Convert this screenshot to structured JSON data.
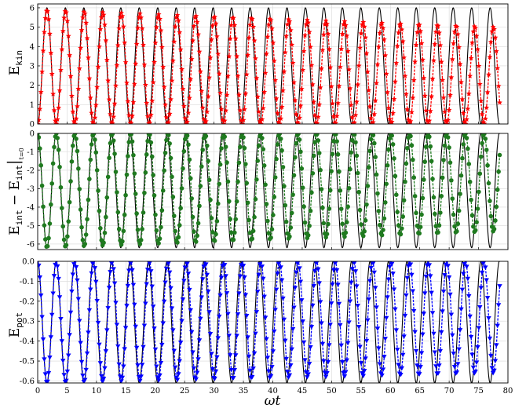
{
  "chart_data": [
    {
      "type": "line",
      "ylabel": "E_kin",
      "xlim": [
        0,
        80
      ],
      "ylim": [
        0,
        6.2
      ],
      "yticks": [
        "0",
        "1",
        "2",
        "3",
        "4",
        "5",
        "6"
      ],
      "ytick_values": [
        0,
        1,
        2,
        3,
        4,
        5,
        6
      ],
      "grid": true,
      "series": [
        {
          "style": "reference",
          "color": "#000000",
          "amplitude": 6.0,
          "offset": 0.0,
          "period": 3.14159,
          "phase": 0.0,
          "min_at_zero": true
        },
        {
          "style": "simulation",
          "color": "#ff0000",
          "marker": "star",
          "amplitude_start": 5.9,
          "amplitude_end": 5.0,
          "offset": 0.0,
          "period": 3.14159,
          "decay": true
        }
      ]
    },
    {
      "type": "line",
      "ylabel": "E_int − E_int|t=0",
      "xlim": [
        0,
        80
      ],
      "ylim": [
        -6.3,
        0
      ],
      "yticks": [
        "0",
        "-1",
        "-2",
        "-3",
        "-4",
        "-5",
        "-6"
      ],
      "ytick_values": [
        0,
        -1,
        -2,
        -3,
        -4,
        -5,
        -6
      ],
      "grid": true,
      "series": [
        {
          "style": "reference",
          "color": "#000000",
          "amplitude": 6.2,
          "offset": 0.0,
          "period": 3.14159,
          "invert": true
        },
        {
          "style": "simulation",
          "color": "#1f7a1f",
          "marker": "circle",
          "amplitude_start": 6.2,
          "amplitude_end": 5.3,
          "offset": 0.0,
          "period": 3.14159,
          "invert": true
        }
      ]
    },
    {
      "type": "line",
      "ylabel": "E_pot",
      "xlabel": "ωt",
      "xlim": [
        0,
        80
      ],
      "ylim": [
        -0.61,
        0.0
      ],
      "xticks": [
        "0",
        "5",
        "10",
        "15",
        "20",
        "25",
        "30",
        "35",
        "40",
        "45",
        "50",
        "55",
        "60",
        "65",
        "70",
        "75",
        "80"
      ],
      "xtick_values": [
        0,
        5,
        10,
        15,
        20,
        25,
        30,
        35,
        40,
        45,
        50,
        55,
        60,
        65,
        70,
        75,
        80
      ],
      "yticks": [
        "0.0",
        "-0.1",
        "-0.2",
        "-0.3",
        "-0.4",
        "-0.5",
        "-0.6"
      ],
      "ytick_values": [
        0.0,
        -0.1,
        -0.2,
        -0.3,
        -0.4,
        -0.5,
        -0.6
      ],
      "grid": true,
      "series": [
        {
          "style": "reference",
          "color": "#000000",
          "amplitude": 0.61,
          "offset": 0.0,
          "period": 3.14159,
          "invert": true
        },
        {
          "style": "simulation",
          "color": "#0000ff",
          "marker": "triangle-down",
          "amplitude_start": 0.61,
          "amplitude_end": 0.56,
          "offset": 0.0,
          "period": 3.14159,
          "invert": true
        }
      ]
    }
  ],
  "labels": {
    "ekin_main": "E",
    "ekin_sub": "kin",
    "eint_main_a": "E",
    "eint_sub_a": "int",
    "eint_minus": " − E",
    "eint_sub_b": "int",
    "eint_eval": "t=0",
    "epot_main": "E",
    "epot_sub": "pot",
    "x_label": "ωt"
  }
}
